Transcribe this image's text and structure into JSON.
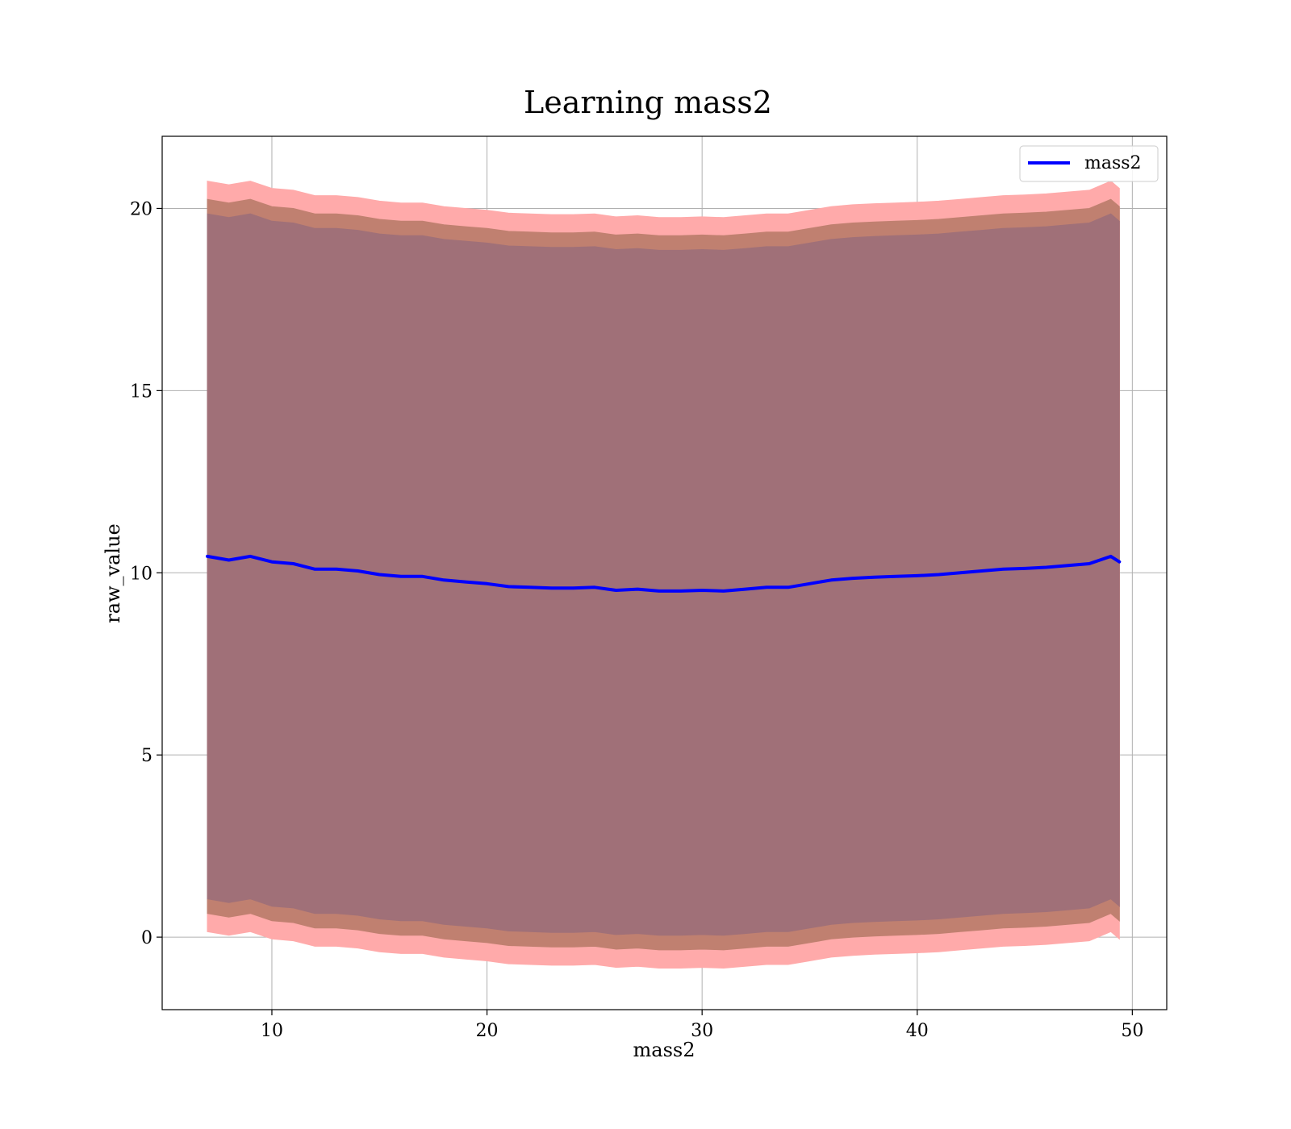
{
  "chart_data": {
    "type": "area",
    "title": "Learning mass2",
    "xlabel": "mass2",
    "ylabel": "raw_value",
    "xlim": [
      4.9,
      51.6
    ],
    "ylim": [
      -1.99,
      21.98
    ],
    "x_ticks": [
      10,
      20,
      30,
      40,
      50
    ],
    "y_ticks": [
      0,
      5,
      10,
      15,
      20
    ],
    "grid": true,
    "legend": {
      "position": "top-right",
      "entries": [
        "mass2"
      ]
    },
    "x": [
      7.0,
      8.0,
      9.0,
      10.0,
      11.0,
      12.0,
      13.0,
      14.0,
      15.0,
      16.0,
      17.0,
      18.0,
      19.0,
      20.0,
      21.0,
      22.0,
      23.0,
      24.0,
      25.0,
      26.0,
      27.0,
      28.0,
      29.0,
      30.0,
      31.0,
      32.0,
      33.0,
      34.0,
      35.0,
      36.0,
      37.0,
      38.0,
      39.0,
      40.0,
      41.0,
      42.0,
      43.0,
      44.0,
      45.0,
      46.0,
      47.0,
      48.0,
      49.0,
      49.4
    ],
    "series": [
      {
        "name": "mass2",
        "color": "#0000ff",
        "values": [
          10.45,
          10.35,
          10.45,
          10.3,
          10.25,
          10.1,
          10.1,
          10.05,
          9.95,
          9.9,
          9.9,
          9.8,
          9.75,
          9.7,
          9.62,
          9.6,
          9.58,
          9.58,
          9.6,
          9.52,
          9.55,
          9.5,
          9.5,
          9.52,
          9.5,
          9.55,
          9.6,
          9.6,
          9.7,
          9.8,
          9.85,
          9.88,
          9.9,
          9.92,
          9.95,
          10.0,
          10.05,
          10.1,
          10.12,
          10.15,
          10.2,
          10.25,
          10.45,
          10.3
        ]
      }
    ],
    "bands": [
      {
        "color": "#ffaaaa",
        "upper": [
          20.75,
          20.65,
          20.75,
          20.55,
          20.5,
          20.35,
          20.35,
          20.3,
          20.2,
          20.15,
          20.15,
          20.05,
          20.0,
          19.95,
          19.87,
          19.85,
          19.83,
          19.83,
          19.85,
          19.77,
          19.8,
          19.75,
          19.75,
          19.77,
          19.75,
          19.8,
          19.85,
          19.85,
          19.95,
          20.05,
          20.1,
          20.13,
          20.15,
          20.17,
          20.2,
          20.25,
          20.3,
          20.35,
          20.37,
          20.4,
          20.45,
          20.5,
          20.75,
          20.55
        ],
        "lower": [
          0.15,
          0.05,
          0.15,
          -0.05,
          -0.1,
          -0.25,
          -0.25,
          -0.3,
          -0.4,
          -0.45,
          -0.45,
          -0.55,
          -0.6,
          -0.65,
          -0.73,
          -0.75,
          -0.77,
          -0.77,
          -0.75,
          -0.83,
          -0.8,
          -0.85,
          -0.85,
          -0.83,
          -0.85,
          -0.8,
          -0.75,
          -0.75,
          -0.65,
          -0.55,
          -0.5,
          -0.47,
          -0.45,
          -0.43,
          -0.4,
          -0.35,
          -0.3,
          -0.25,
          -0.23,
          -0.2,
          -0.15,
          -0.1,
          0.15,
          -0.05
        ]
      },
      {
        "color": "#c08070",
        "upper": [
          20.25,
          20.15,
          20.25,
          20.05,
          20.0,
          19.85,
          19.85,
          19.8,
          19.7,
          19.65,
          19.65,
          19.55,
          19.5,
          19.45,
          19.37,
          19.35,
          19.33,
          19.33,
          19.35,
          19.27,
          19.3,
          19.25,
          19.25,
          19.27,
          19.25,
          19.3,
          19.35,
          19.35,
          19.45,
          19.55,
          19.6,
          19.63,
          19.65,
          19.67,
          19.7,
          19.75,
          19.8,
          19.85,
          19.87,
          19.9,
          19.95,
          20.0,
          20.25,
          20.05
        ],
        "lower": [
          0.65,
          0.55,
          0.65,
          0.45,
          0.4,
          0.25,
          0.25,
          0.2,
          0.1,
          0.05,
          0.05,
          -0.05,
          -0.1,
          -0.15,
          -0.23,
          -0.25,
          -0.27,
          -0.27,
          -0.25,
          -0.33,
          -0.3,
          -0.35,
          -0.35,
          -0.33,
          -0.35,
          -0.3,
          -0.25,
          -0.25,
          -0.15,
          -0.05,
          0.0,
          0.03,
          0.05,
          0.07,
          0.1,
          0.15,
          0.2,
          0.25,
          0.27,
          0.3,
          0.35,
          0.4,
          0.65,
          0.45
        ]
      },
      {
        "color": "#a07078",
        "upper": [
          19.85,
          19.75,
          19.85,
          19.65,
          19.6,
          19.45,
          19.45,
          19.4,
          19.3,
          19.25,
          19.25,
          19.15,
          19.1,
          19.05,
          18.97,
          18.95,
          18.93,
          18.93,
          18.95,
          18.87,
          18.9,
          18.85,
          18.85,
          18.87,
          18.85,
          18.9,
          18.95,
          18.95,
          19.05,
          19.15,
          19.2,
          19.23,
          19.25,
          19.27,
          19.3,
          19.35,
          19.4,
          19.45,
          19.47,
          19.5,
          19.55,
          19.6,
          19.85,
          19.65
        ],
        "lower": [
          1.05,
          0.95,
          1.05,
          0.85,
          0.8,
          0.65,
          0.65,
          0.6,
          0.5,
          0.45,
          0.45,
          0.35,
          0.3,
          0.25,
          0.17,
          0.15,
          0.13,
          0.13,
          0.15,
          0.07,
          0.1,
          0.05,
          0.05,
          0.07,
          0.05,
          0.1,
          0.15,
          0.15,
          0.25,
          0.35,
          0.4,
          0.43,
          0.45,
          0.47,
          0.5,
          0.55,
          0.6,
          0.65,
          0.67,
          0.7,
          0.75,
          0.8,
          1.05,
          0.85
        ]
      }
    ]
  }
}
